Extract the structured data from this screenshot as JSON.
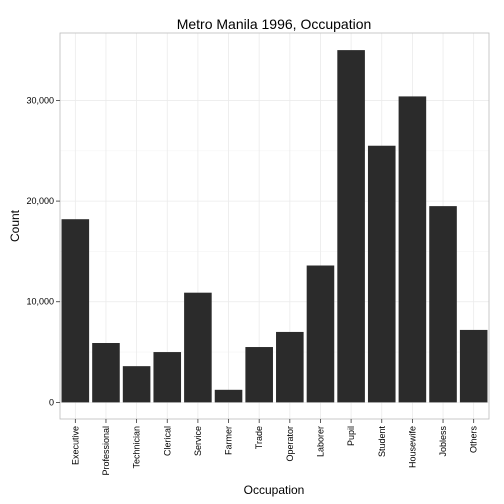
{
  "chart_data": {
    "type": "bar",
    "title": "Metro Manila 1996, Occupation",
    "xlabel": "Occupation",
    "ylabel": "Count",
    "categories": [
      "Executive",
      "Professional",
      "Technician",
      "Clerical",
      "Service",
      "Farmer",
      "Trade",
      "Operator",
      "Laborer",
      "Pupil",
      "Student",
      "Housewife",
      "Jobless",
      "Others"
    ],
    "values": [
      18200,
      5900,
      3600,
      5000,
      10900,
      1250,
      5500,
      7000,
      13600,
      35000,
      25500,
      30400,
      19500,
      7200
    ],
    "ylim": [
      -1650,
      36700
    ],
    "yticks": [
      0,
      10000,
      20000,
      30000
    ],
    "ytick_labels": [
      "0",
      "10,000",
      "20,000",
      "30,000"
    ],
    "bar_color": "#2b2b2b",
    "grid": true
  }
}
